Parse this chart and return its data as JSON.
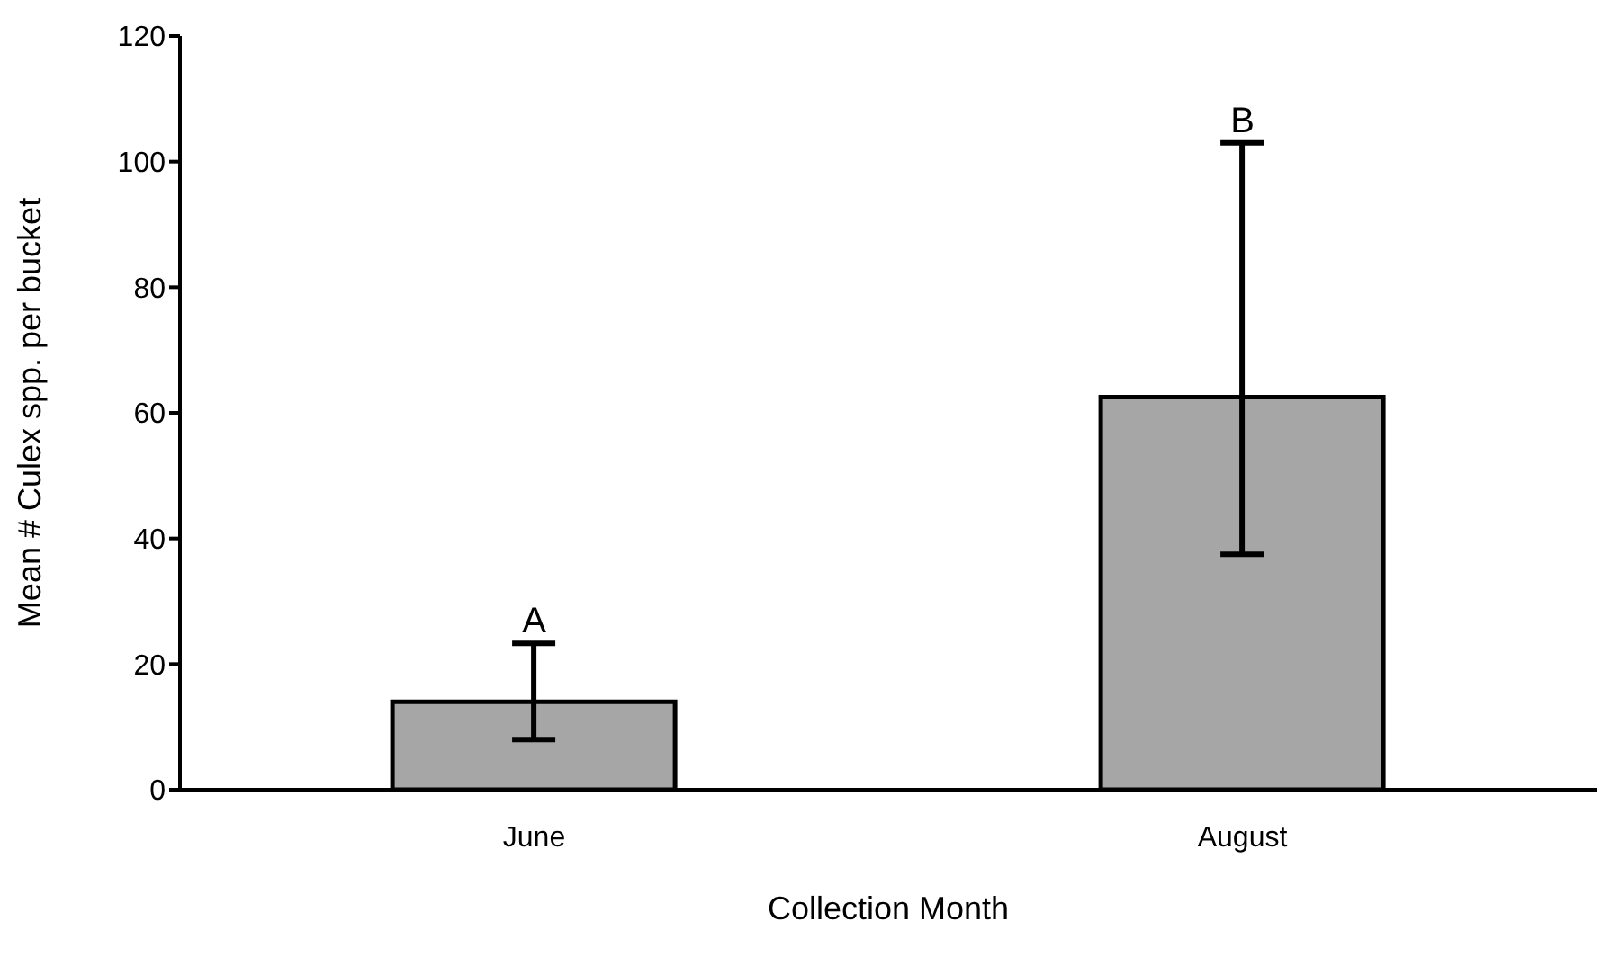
{
  "chart_data": {
    "type": "bar",
    "xlabel": "Collection Month",
    "ylabel": "Mean # Culex spp. per bucket",
    "categories": [
      "June",
      "August"
    ],
    "values": [
      14,
      62.5
    ],
    "errors": [
      [
        8,
        23.3
      ],
      [
        37.5,
        103
      ]
    ],
    "color": "#a6a6a6",
    "ylim": [
      0,
      120
    ],
    "yticks": [
      0,
      20,
      40,
      60,
      80,
      100,
      120
    ],
    "grid": false,
    "legend": false,
    "annotations": [
      {
        "text": "A",
        "x": "June",
        "y": 23.3
      },
      {
        "text": "B",
        "x": "August",
        "y": 103
      }
    ]
  }
}
